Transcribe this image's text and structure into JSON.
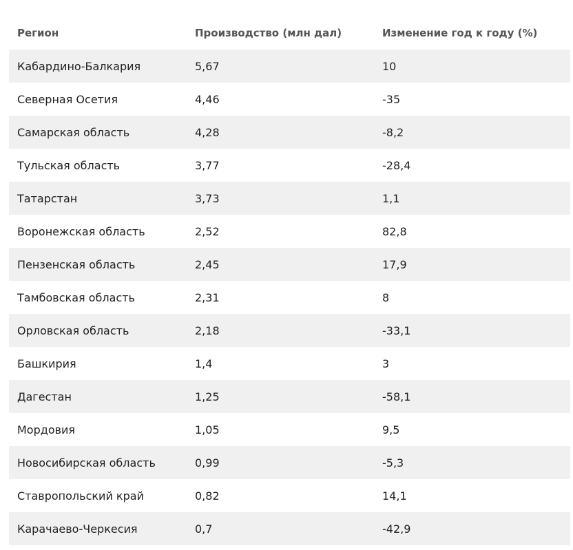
{
  "table": {
    "headers": [
      "Регион",
      "Производство (млн дал)",
      "Изменение год к году (%)"
    ],
    "rows": [
      [
        "Кабардино-Балкария",
        "5,67",
        "10"
      ],
      [
        "Северная Осетия",
        "4,46",
        "-35"
      ],
      [
        "Самарская область",
        "4,28",
        "-8,2"
      ],
      [
        "Тульская область",
        "3,77",
        "-28,4"
      ],
      [
        "Татарстан",
        "3,73",
        "1,1"
      ],
      [
        "Воронежская область",
        "2,52",
        "82,8"
      ],
      [
        "Пензенская область",
        "2,45",
        "17,9"
      ],
      [
        "Тамбовская область",
        "2,31",
        "8"
      ],
      [
        "Орловская область",
        "2,18",
        "-33,1"
      ],
      [
        "Башкирия",
        "1,4",
        "3"
      ],
      [
        "Дагестан",
        "1,25",
        "-58,1"
      ],
      [
        "Мордовия",
        "1,05",
        "9,5"
      ],
      [
        "Новосибирская область",
        "0,99",
        "-5,3"
      ],
      [
        "Ставропольский край",
        "0,82",
        "14,1"
      ],
      [
        "Карачаево-Черкесия",
        "0,7",
        "-42,9"
      ]
    ],
    "colors": {
      "shaded_row": "#f0f0f0",
      "header_text": "#555555",
      "body_text": "#222222"
    }
  }
}
